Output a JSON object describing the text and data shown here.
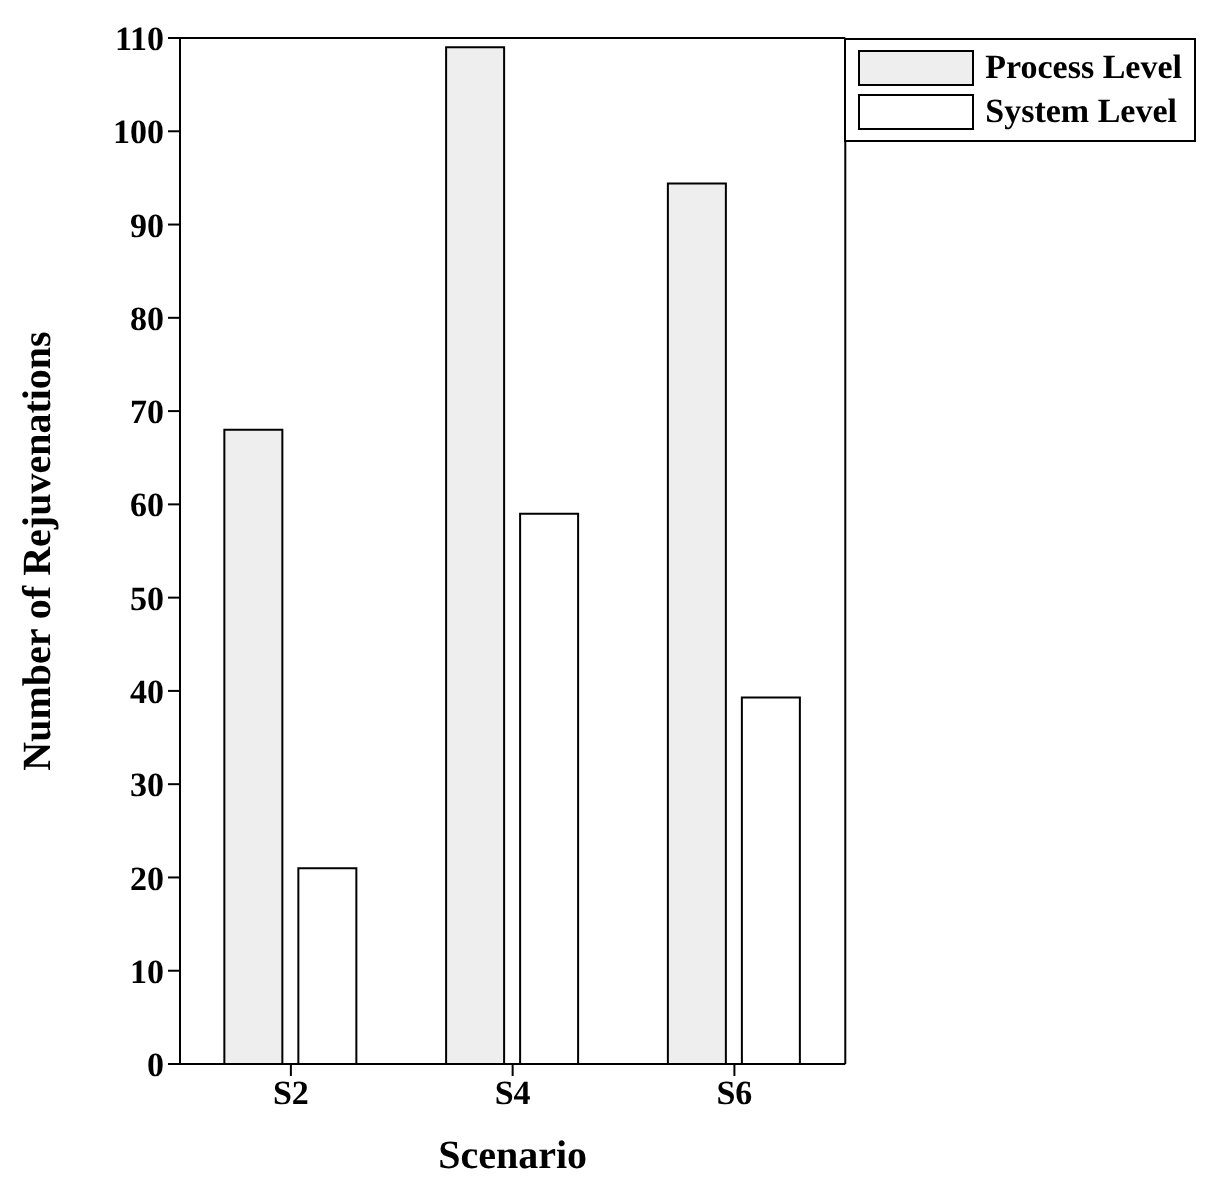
{
  "chart_data": {
    "type": "bar",
    "xlabel": "Scenario",
    "ylabel": "Number of Rejuvenations",
    "categories": [
      "S2",
      "S4",
      "S6"
    ],
    "series": [
      {
        "name": "Process Level",
        "color": "#eeeeee",
        "values": [
          68,
          109,
          94.4
        ]
      },
      {
        "name": "System Level",
        "color": "#ffffff",
        "values": [
          21,
          59,
          39.3
        ]
      }
    ],
    "ylim": [
      0,
      110
    ],
    "yticks": [
      0,
      10,
      20,
      30,
      40,
      50,
      60,
      70,
      80,
      90,
      100,
      110
    ],
    "legend": "top right",
    "grid": false
  }
}
